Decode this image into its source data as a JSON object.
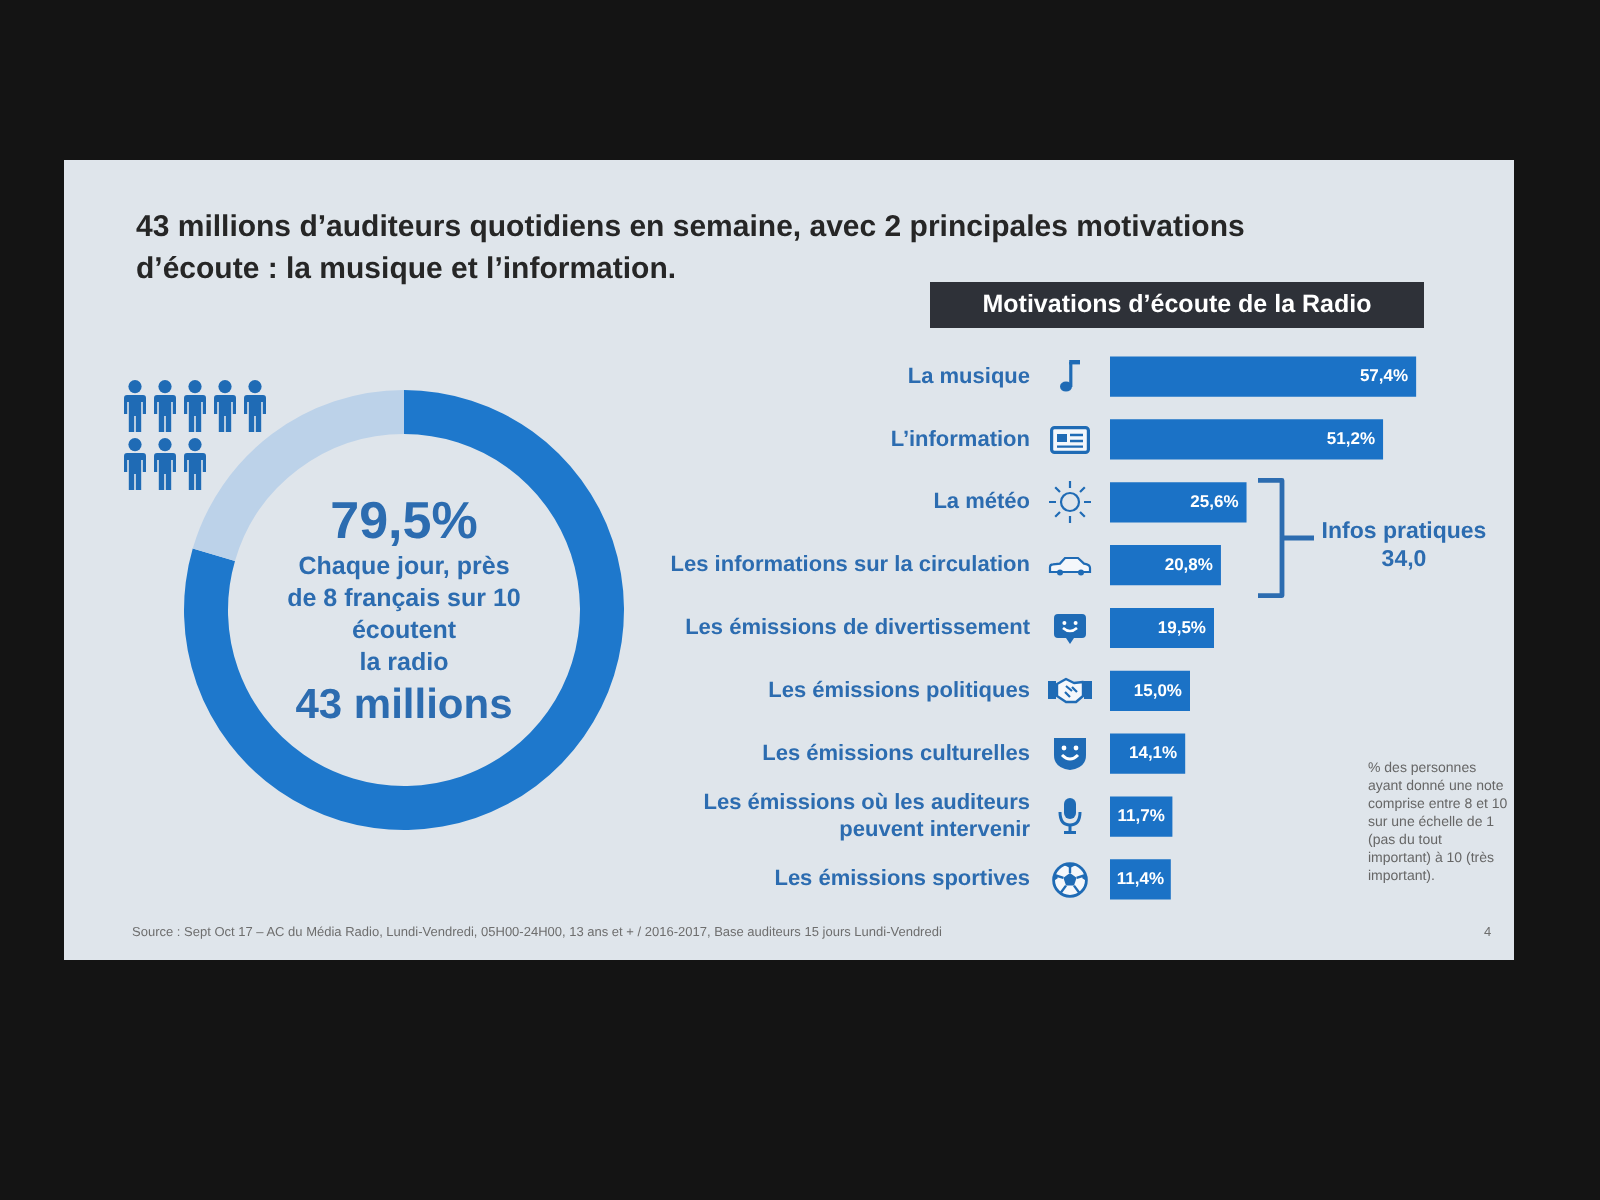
{
  "chart_data": [
    {
      "type": "donut",
      "title": "43 millions d’auditeurs quotidiens en semaine, avec 2 principales motivations d’écoute : la musique et l’information.",
      "categories": [
        null,
        null
      ],
      "values": [
        79.5,
        20.5
      ],
      "colors": [
        "#1e78cc",
        "#bcd2e9"
      ],
      "annotations": [
        "79,5%",
        "Chaque jour, près\nde 8 français sur 10\nécoutent\nla radio",
        "43 millions"
      ]
    },
    {
      "type": "bar",
      "orientation": "horizontal",
      "title": "Motivations d’écoute de la Radio",
      "categories": [
        "La musique",
        "L’information",
        "La météo",
        "Les informations sur la circulation",
        "Les émissions de divertissement",
        "Les émissions politiques",
        "Les émissions culturelles",
        "Les émissions où les auditeurs peuvent intervenir",
        "Les émissions sportives"
      ],
      "values": [
        57.4,
        51.2,
        25.6,
        20.8,
        19.5,
        15.0,
        14.1,
        11.7,
        11.4
      ],
      "color": "#1b72c6",
      "value_labels": [
        "57,4%",
        "51,2%",
        "25,6%",
        "20,8%",
        "19,5%",
        "15,0%",
        "14,1%",
        "11,7%",
        "11,4%"
      ],
      "tick_labels": "y",
      "annotations": [
        "Infos pratiques\n34,0",
        "% des personnes ayant donné une note comprise entre 8 et 10 sur une échelle de 1 (pas du tout important) à 10 (très important).",
        "Source : Sept Oct 17 – AC du Média Radio, Lundi-Vendredi, 05H00-24H00, 13 ans et + / 2016-2017, Base auditeurs 15 jours Lundi-Vendredi",
        "4"
      ]
    }
  ]
}
